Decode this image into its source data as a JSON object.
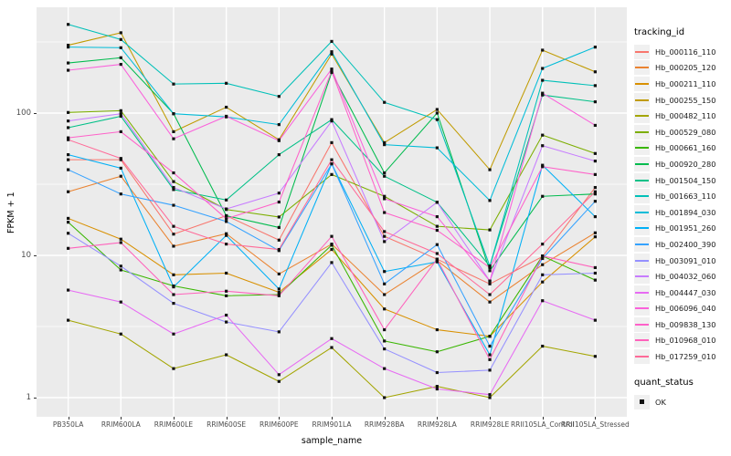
{
  "chart_data": {
    "type": "line",
    "title": "",
    "xlabel": "sample_name",
    "ylabel": "FPKM + 1",
    "y_scale": "log10",
    "y_major_ticks": [
      1,
      10,
      100
    ],
    "y_tick_labels": [
      "1",
      "10",
      "100"
    ],
    "y_minor_ticks": [
      3.162,
      31.62,
      316.2
    ],
    "ylim": [
      0.75,
      550
    ],
    "grid": "white-on-gray",
    "legend_position": "right",
    "marker": "black-square",
    "categories": [
      "PB350LA",
      "RRIM600LA",
      "RRIM600LE",
      "RRIM600SE",
      "RRIM600PE",
      "RRIM901LA",
      "RRIM928BA",
      "RRIM928LA",
      "RRIM928LE",
      "RRII105LA_Control",
      "RRII105LA_Stressed"
    ],
    "series": [
      {
        "name": "Hb_000116_110",
        "color": "#F8766D",
        "values": [
          47,
          47,
          14.1,
          19,
          12.8,
          62,
          13.6,
          9.4,
          6.3,
          9.8,
          30
        ]
      },
      {
        "name": "Hb_000205_120",
        "color": "#EA8331",
        "values": [
          28,
          36,
          11.6,
          14.2,
          7.4,
          12,
          5.3,
          9.2,
          4.7,
          8.6,
          14.4
        ]
      },
      {
        "name": "Hb_000211_110",
        "color": "#D89000",
        "values": [
          18.2,
          13,
          7.3,
          7.5,
          5.5,
          11,
          4.2,
          3.0,
          2.7,
          6.5,
          13.5
        ]
      },
      {
        "name": "Hb_000255_150",
        "color": "#C09B00",
        "values": [
          300,
          367,
          74,
          110,
          65,
          260,
          62,
          106,
          40,
          277,
          195
        ]
      },
      {
        "name": "Hb_000482_110",
        "color": "#A3A500",
        "values": [
          3.5,
          2.8,
          1.6,
          2.0,
          1.3,
          2.25,
          1.0,
          1.2,
          1.0,
          2.3,
          1.95
        ]
      },
      {
        "name": "Hb_000529_080",
        "color": "#7CAE00",
        "values": [
          101,
          104,
          33,
          21,
          18.6,
          37,
          26,
          16,
          15.1,
          70,
          52
        ]
      },
      {
        "name": "Hb_000661_160",
        "color": "#39B600",
        "values": [
          17.1,
          7.9,
          6.1,
          5.2,
          5.3,
          11.8,
          2.5,
          2.1,
          2.7,
          9.9,
          6.7
        ]
      },
      {
        "name": "Hb_000920_280",
        "color": "#00BB4E",
        "values": [
          225,
          245,
          99,
          19,
          15.7,
          193,
          38,
          100,
          7.8,
          26,
          27
        ]
      },
      {
        "name": "Hb_001504_150",
        "color": "#00C087",
        "values": [
          79,
          95,
          29,
          24.5,
          51,
          90,
          36,
          23.6,
          8.4,
          134,
          120
        ]
      },
      {
        "name": "Hb_001663_110",
        "color": "#00C0B8",
        "values": [
          420,
          329,
          160,
          162,
          131,
          319,
          119,
          90,
          8.4,
          170,
          156
        ]
      },
      {
        "name": "Hb_001894_030",
        "color": "#00BCD8",
        "values": [
          291,
          288,
          99,
          94,
          83,
          270,
          60,
          57,
          24.3,
          206,
          291
        ]
      },
      {
        "name": "Hb_001951_260",
        "color": "#00B0F6",
        "values": [
          51,
          41,
          6.0,
          13.8,
          5.8,
          44,
          7.7,
          9.0,
          2.0,
          43,
          18.7
        ]
      },
      {
        "name": "Hb_002400_390",
        "color": "#35A2FF",
        "values": [
          40,
          27,
          22.5,
          17.3,
          10.8,
          44,
          6.3,
          11.9,
          2.3,
          9.5,
          24
        ]
      },
      {
        "name": "Hb_003091_010",
        "color": "#9590FF",
        "values": [
          14.3,
          8.4,
          4.6,
          3.4,
          2.9,
          8.9,
          2.2,
          1.5,
          1.56,
          7.3,
          7.5
        ]
      },
      {
        "name": "Hb_004032_060",
        "color": "#C77CFF",
        "values": [
          88,
          99,
          30,
          21.2,
          27.4,
          88,
          12.5,
          23.6,
          6.6,
          59,
          46
        ]
      },
      {
        "name": "Hb_004447_030",
        "color": "#E76BF3",
        "values": [
          5.7,
          4.7,
          2.8,
          3.8,
          1.45,
          2.6,
          1.6,
          1.15,
          1.05,
          4.8,
          3.5
        ]
      },
      {
        "name": "Hb_006096_040",
        "color": "#FA62DB",
        "values": [
          200,
          220,
          66,
          95,
          64,
          204,
          25,
          18.7,
          6.6,
          138,
          82
        ]
      },
      {
        "name": "Hb_009838_130",
        "color": "#FF61C9",
        "values": [
          67,
          74,
          38,
          18.1,
          23.7,
          197,
          20,
          15,
          8.2,
          42,
          37
        ]
      },
      {
        "name": "Hb_010968_010",
        "color": "#FF62BC",
        "values": [
          11.2,
          12.3,
          5.3,
          5.6,
          5.2,
          13.6,
          3.0,
          9.4,
          1.85,
          9.9,
          8.2
        ]
      },
      {
        "name": "Hb_017259_010",
        "color": "#FF6A98",
        "values": [
          65,
          48,
          16,
          12,
          11,
          47,
          14.7,
          10.3,
          5.3,
          12,
          28
        ]
      }
    ]
  },
  "axes": {
    "x_title": "sample_name",
    "y_title": "FPKM + 1"
  },
  "legend": {
    "tracking_title": "tracking_id",
    "quant_title": "quant_status",
    "quant_items": [
      {
        "label": "OK",
        "marker": "black-square"
      }
    ]
  },
  "style": {
    "panel_bg": "#EBEBEB",
    "grid_color": "#FFFFFF",
    "point_color": "#111111",
    "tick_label_color": "#4D4D4D",
    "legend_key_bg": "#F0F0F0"
  }
}
